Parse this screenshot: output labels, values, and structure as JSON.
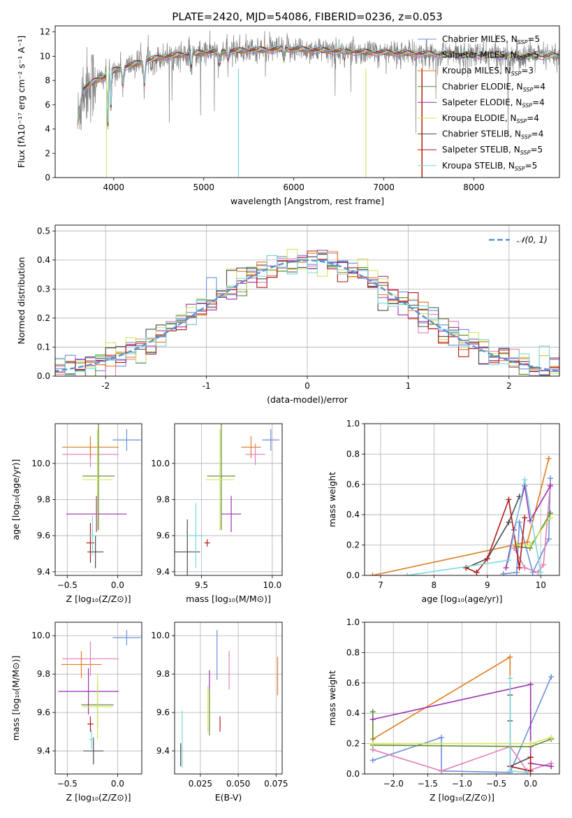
{
  "figure": {
    "title": "PLATE=2420, MJD=54086, FIBERID=0236, z=0.053"
  },
  "colors": {
    "Chabrier MILES": "#6a8fdc",
    "Salpeter MILES": "#e27fb6",
    "Kroupa MILES": "#e07b20",
    "Chabrier ELODIE": "#5a8a2a",
    "Salpeter ELODIE": "#9b2fae",
    "Kroupa ELODIE": "#d6e35a",
    "Chabrier STELIB": "#4a4a4a",
    "Salpeter STELIB": "#b01a1a",
    "Kroupa STELIB": "#7ad8dd",
    "data": "#808080",
    "normal": "#5b8fd6"
  },
  "chart_data": [
    {
      "id": "spectrum",
      "type": "line",
      "xlabel": "wavelength [Angstrom, rest frame]",
      "ylabel": "Flux [fλ10⁻¹⁷ erg cm⁻² s⁻¹ A⁻¹]",
      "xlim": [
        3350,
        8950
      ],
      "ylim": [
        0,
        12.5
      ],
      "xticks": [
        4000,
        5000,
        6000,
        7000,
        8000
      ],
      "yticks": [
        0,
        2,
        4,
        6,
        8,
        10,
        12
      ],
      "legend_position": "top-right",
      "legend": [
        {
          "name": "Chabrier MILES",
          "nssp": "5"
        },
        {
          "name": "Salpeter MILES",
          "nssp": "5"
        },
        {
          "name": "Kroupa MILES",
          "nssp": "3"
        },
        {
          "name": "Chabrier ELODIE",
          "nssp": "4"
        },
        {
          "name": "Salpeter ELODIE",
          "nssp": "4"
        },
        {
          "name": "Kroupa ELODIE",
          "nssp": "4"
        },
        {
          "name": "Chabrier STELIB",
          "nssp": "4"
        },
        {
          "name": "Salpeter STELIB",
          "nssp": "5"
        },
        {
          "name": "Kroupa STELIB",
          "nssp": "5"
        }
      ],
      "continuum": [
        [
          3600,
          7.0
        ],
        [
          3700,
          7.5
        ],
        [
          3800,
          8.0
        ],
        [
          3900,
          8.3
        ],
        [
          4000,
          8.8
        ],
        [
          4200,
          9.3
        ],
        [
          4400,
          9.7
        ],
        [
          4600,
          10.0
        ],
        [
          5000,
          10.3
        ],
        [
          5500,
          10.5
        ],
        [
          6000,
          10.6
        ],
        [
          6500,
          10.4
        ],
        [
          7000,
          10.3
        ],
        [
          7400,
          10.2
        ],
        [
          8000,
          10.1
        ],
        [
          8500,
          10.0
        ],
        [
          8900,
          10.0
        ]
      ]
    },
    {
      "id": "residuals",
      "type": "line",
      "xlabel": "(data-model)/error",
      "ylabel": "Normed distribution",
      "xlim": [
        -2.5,
        2.5
      ],
      "ylim": [
        0,
        0.52
      ],
      "xticks": [
        -2,
        -1,
        0,
        1,
        2
      ],
      "yticks": [
        0.0,
        0.1,
        0.2,
        0.3,
        0.4,
        0.5
      ],
      "grid": true,
      "legend_position": "top-right",
      "curve_label": "𝒩(0, 1)"
    },
    {
      "id": "age_vs_Z",
      "type": "scatter",
      "xlabel": "Z [log₁₀(Z/Z⊙)]",
      "ylabel": "age  [log₁₀(age/yr)]",
      "xlim": [
        -0.62,
        0.24
      ],
      "ylim": [
        9.38,
        10.22
      ],
      "xticks": [
        -0.5,
        0.0
      ],
      "xtick_labels": [
        "−0.5",
        "0.0"
      ],
      "yticks": [
        9.4,
        9.6,
        9.8,
        10.0
      ],
      "grid": true,
      "series": [
        {
          "name": "Chabrier MILES",
          "x": 0.09,
          "y": 10.13,
          "xerr": 0.14,
          "yerr": 0.06
        },
        {
          "name": "Salpeter MILES",
          "x": -0.27,
          "y": 10.05,
          "xerr": 0.28,
          "yerr": 0.07
        },
        {
          "name": "Kroupa MILES",
          "x": -0.27,
          "y": 10.09,
          "xerr": 0.28,
          "yerr": 0.06
        },
        {
          "name": "Chabrier ELODIE",
          "x": -0.19,
          "y": 9.93,
          "xerr": 0.16,
          "yerr": 0.3
        },
        {
          "name": "Salpeter ELODIE",
          "x": -0.21,
          "y": 9.72,
          "xerr": 0.3,
          "yerr": 0.1
        },
        {
          "name": "Kroupa ELODIE",
          "x": -0.2,
          "y": 9.91,
          "xerr": 0.15,
          "yerr": 0.28
        },
        {
          "name": "Chabrier STELIB",
          "x": -0.22,
          "y": 9.51,
          "xerr": 0.08,
          "yerr": 0.09
        },
        {
          "name": "Salpeter STELIB",
          "x": -0.27,
          "y": 9.56,
          "xerr": 0.04,
          "yerr": 0.11
        },
        {
          "name": "Kroupa STELIB",
          "x": -0.25,
          "y": 9.6,
          "xerr": 0.04,
          "yerr": 0.11
        }
      ]
    },
    {
      "id": "age_vs_mass",
      "type": "scatter",
      "xlabel": "mass [log₁₀(M/M⊙)]",
      "ylabel": "",
      "xlim": [
        9.31,
        10.07
      ],
      "ylim": [
        9.38,
        10.22
      ],
      "xticks": [
        9.5,
        10.0
      ],
      "xtick_labels": [
        "9.5",
        "10.0"
      ],
      "yticks": [
        9.4,
        9.6,
        9.8,
        10.0
      ],
      "grid": true,
      "series": [
        {
          "name": "Chabrier MILES",
          "x": 9.99,
          "y": 10.13,
          "xerr": 0.06,
          "yerr": 0.06
        },
        {
          "name": "Salpeter MILES",
          "x": 9.88,
          "y": 10.05,
          "xerr": 0.07,
          "yerr": 0.06
        },
        {
          "name": "Kroupa MILES",
          "x": 9.85,
          "y": 10.09,
          "xerr": 0.07,
          "yerr": 0.06
        },
        {
          "name": "Chabrier ELODIE",
          "x": 9.64,
          "y": 9.93,
          "xerr": 0.1,
          "yerr": 0.3
        },
        {
          "name": "Salpeter ELODIE",
          "x": 9.71,
          "y": 9.72,
          "xerr": 0.07,
          "yerr": 0.1
        },
        {
          "name": "Kroupa ELODIE",
          "x": 9.63,
          "y": 9.91,
          "xerr": 0.1,
          "yerr": 0.28
        },
        {
          "name": "Chabrier STELIB",
          "x": 9.4,
          "y": 9.51,
          "xerr": 0.09,
          "yerr": 0.18
        },
        {
          "name": "Salpeter STELIB",
          "x": 9.54,
          "y": 9.56,
          "xerr": 0.02,
          "yerr": 0.02
        },
        {
          "name": "Kroupa STELIB",
          "x": 9.46,
          "y": 9.6,
          "xerr": 0.06,
          "yerr": 0.18
        }
      ]
    },
    {
      "id": "weight_vs_age",
      "type": "line",
      "xlabel": "age  [log₁₀(age/yr)]",
      "ylabel": "mass weight",
      "xlim": [
        6.7,
        10.35
      ],
      "ylim": [
        0,
        1.0
      ],
      "xticks": [
        7,
        8,
        9,
        10
      ],
      "yticks": [
        0.0,
        0.2,
        0.4,
        0.6,
        0.8,
        1.0
      ],
      "grid": true,
      "series": [
        {
          "name": "Chabrier MILES",
          "x": [
            9.3,
            9.55,
            9.6,
            9.85,
            10.15,
            10.18
          ],
          "y": [
            0.01,
            0.02,
            0.35,
            0.02,
            0.24,
            0.64
          ]
        },
        {
          "name": "Salpeter MILES",
          "x": [
            9.5,
            9.7,
            9.95,
            10.05,
            10.18
          ],
          "y": [
            0.18,
            0.05,
            0.02,
            0.07,
            0.6
          ]
        },
        {
          "name": "Kroupa MILES",
          "x": [
            6.85,
            9.75,
            10.15
          ],
          "y": [
            0.0,
            0.22,
            0.77
          ]
        },
        {
          "name": "Chabrier ELODIE",
          "x": [
            9.55,
            9.8,
            10.18
          ],
          "y": [
            0.19,
            0.18,
            0.41
          ]
        },
        {
          "name": "Salpeter ELODIE",
          "x": [
            9.35,
            9.5,
            9.7,
            9.8,
            10.18
          ],
          "y": [
            0.05,
            0.3,
            0.59,
            0.36,
            0.59
          ]
        },
        {
          "name": "Kroupa ELODIE",
          "x": [
            9.55,
            9.8,
            10.18
          ],
          "y": [
            0.2,
            0.2,
            0.38
          ]
        },
        {
          "name": "Chabrier STELIB",
          "x": [
            8.6,
            9.0,
            9.4,
            9.6
          ],
          "y": [
            0.05,
            0.11,
            0.35,
            0.52
          ]
        },
        {
          "name": "Salpeter STELIB",
          "x": [
            8.6,
            8.8,
            9.0,
            9.4,
            9.6,
            9.7
          ],
          "y": [
            0.05,
            0.02,
            0.11,
            0.5,
            0.05,
            0.38
          ]
        },
        {
          "name": "Kroupa STELIB",
          "x": [
            7.5,
            9.4,
            9.7,
            10.0
          ],
          "y": [
            0.0,
            0.1,
            0.63,
            0.02
          ]
        }
      ]
    },
    {
      "id": "mass_vs_Z",
      "type": "scatter",
      "xlabel": "Z [log₁₀(Z/Z⊙)]",
      "ylabel": "mass [log₁₀(M/M⊙)]",
      "xlim": [
        -0.62,
        0.24
      ],
      "ylim": [
        9.28,
        10.07
      ],
      "xticks": [
        -0.5,
        0.0
      ],
      "xtick_labels": [
        "−0.5",
        "0.0"
      ],
      "yticks": [
        9.4,
        9.6,
        9.8,
        10.0
      ],
      "grid": true,
      "series": [
        {
          "name": "Chabrier MILES",
          "x": 0.09,
          "y": 9.99,
          "xerr": 0.14,
          "yerr": 0.04
        },
        {
          "name": "Salpeter MILES",
          "x": -0.27,
          "y": 9.88,
          "xerr": 0.28,
          "yerr": 0.09
        },
        {
          "name": "Kroupa MILES",
          "x": -0.36,
          "y": 9.85,
          "xerr": 0.2,
          "yerr": 0.07
        },
        {
          "name": "Chabrier ELODIE",
          "x": -0.2,
          "y": 9.64,
          "xerr": 0.16,
          "yerr": 0.12
        },
        {
          "name": "Salpeter ELODIE",
          "x": -0.29,
          "y": 9.71,
          "xerr": 0.3,
          "yerr": 0.12
        },
        {
          "name": "Kroupa ELODIE",
          "x": -0.2,
          "y": 9.63,
          "xerr": 0.15,
          "yerr": 0.17
        },
        {
          "name": "Chabrier STELIB",
          "x": -0.24,
          "y": 9.4,
          "xerr": 0.1,
          "yerr": 0.07
        },
        {
          "name": "Salpeter STELIB",
          "x": -0.27,
          "y": 9.54,
          "xerr": 0.03,
          "yerr": 0.04
        },
        {
          "name": "Kroupa STELIB",
          "x": -0.26,
          "y": 9.46,
          "xerr": 0.02,
          "yerr": 0.05
        }
      ]
    },
    {
      "id": "mass_vs_EBV",
      "type": "scatter",
      "xlabel": "E(B-V)",
      "ylabel": "",
      "xlim": [
        0.008,
        0.079
      ],
      "ylim": [
        9.28,
        10.07
      ],
      "xticks": [
        0.025,
        0.05,
        0.075
      ],
      "xtick_labels": [
        "0.025",
        "0.050",
        "0.075"
      ],
      "yticks": [
        9.4,
        9.6,
        9.8,
        10.0
      ],
      "grid": true,
      "series": [
        {
          "name": "Chabrier MILES",
          "x": 0.036,
          "y": 9.9,
          "xerr": 0,
          "yerr": 0.13
        },
        {
          "name": "Salpeter MILES",
          "x": 0.044,
          "y": 9.82,
          "xerr": 0,
          "yerr": 0.1
        },
        {
          "name": "Kroupa MILES",
          "x": 0.076,
          "y": 9.79,
          "xerr": 0,
          "yerr": 0.1
        },
        {
          "name": "Chabrier ELODIE",
          "x": 0.031,
          "y": 9.6,
          "xerr": 0,
          "yerr": 0.12
        },
        {
          "name": "Salpeter ELODIE",
          "x": 0.031,
          "y": 9.77,
          "xerr": 0,
          "yerr": 0.05
        },
        {
          "name": "Kroupa ELODIE",
          "x": 0.03,
          "y": 9.62,
          "xerr": 0,
          "yerr": 0.12
        },
        {
          "name": "Chabrier STELIB",
          "x": 0.012,
          "y": 9.38,
          "xerr": 0,
          "yerr": 0.06
        },
        {
          "name": "Salpeter STELIB",
          "x": 0.038,
          "y": 9.54,
          "xerr": 0,
          "yerr": 0.04
        },
        {
          "name": "Kroupa STELIB",
          "x": 0.013,
          "y": 9.46,
          "xerr": 0,
          "yerr": 0.15
        }
      ]
    },
    {
      "id": "weight_vs_Z",
      "type": "line",
      "xlabel": "Z [log₁₀(Z/Z⊙)]",
      "ylabel": "mass weight",
      "xlim": [
        -2.42,
        0.42
      ],
      "ylim": [
        0,
        1.0
      ],
      "xticks": [
        -2.0,
        -1.5,
        -1.0,
        -0.5,
        0.0
      ],
      "xtick_labels": [
        "−2.0",
        "−1.5",
        "−1.0",
        "−0.5",
        "0.0"
      ],
      "yticks": [
        0.0,
        0.2,
        0.4,
        0.6,
        0.8,
        1.0
      ],
      "grid": true,
      "series": [
        {
          "name": "Chabrier MILES",
          "x": [
            -2.3,
            -1.3,
            -1.3,
            -0.3,
            0.3
          ],
          "y": [
            0.09,
            0.24,
            0.02,
            0.01,
            0.64
          ]
        },
        {
          "name": "Salpeter MILES",
          "x": [
            -2.3,
            -1.3,
            -0.3,
            -0.05,
            0.3
          ],
          "y": [
            0.16,
            0.02,
            0.18,
            0.02,
            0.07
          ]
        },
        {
          "name": "Kroupa MILES",
          "x": [
            -2.3,
            -0.3,
            -0.3
          ],
          "y": [
            0.23,
            0.77,
            0.02
          ]
        },
        {
          "name": "Chabrier ELODIE",
          "x": [
            -2.3,
            -2.3,
            0.0,
            0.3
          ],
          "y": [
            0.41,
            0.19,
            0.18,
            0.23
          ]
        },
        {
          "name": "Salpeter ELODIE",
          "x": [
            -2.3,
            0.0,
            0.0,
            0.3
          ],
          "y": [
            0.36,
            0.59,
            0.07,
            0.05
          ]
        },
        {
          "name": "Kroupa ELODIE",
          "x": [
            -2.3,
            0.0,
            0.3
          ],
          "y": [
            0.2,
            0.2,
            0.24
          ]
        },
        {
          "name": "Chabrier STELIB",
          "x": [
            -0.3,
            -0.3,
            -0.3,
            0.0
          ],
          "y": [
            0.52,
            0.35,
            0.05,
            0.11
          ]
        },
        {
          "name": "Salpeter STELIB",
          "x": [
            -0.3,
            0.0,
            0.0
          ],
          "y": [
            0.05,
            0.02,
            0.11
          ]
        },
        {
          "name": "Kroupa STELIB",
          "x": [
            -0.3,
            -0.3,
            -0.05
          ],
          "y": [
            0.63,
            0.02,
            0.01
          ]
        }
      ]
    }
  ]
}
